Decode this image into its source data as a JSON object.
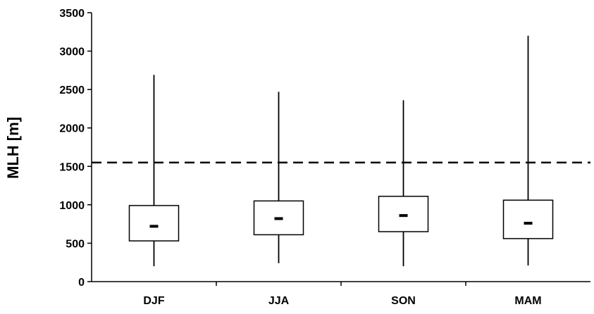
{
  "chart_data": {
    "type": "boxplot",
    "title": "",
    "xlabel": "",
    "ylabel": "MLH [m]",
    "ylim": [
      0,
      3500
    ],
    "yticks": [
      0,
      500,
      1000,
      1500,
      2000,
      2500,
      3000,
      3500
    ],
    "categories": [
      "DJF",
      "JJA",
      "SON",
      "MAM"
    ],
    "boxes": [
      {
        "category": "DJF",
        "min": 200,
        "q1": 530,
        "median": 720,
        "q3": 990,
        "max": 2690
      },
      {
        "category": "JJA",
        "min": 240,
        "q1": 610,
        "median": 820,
        "q3": 1050,
        "max": 2470
      },
      {
        "category": "SON",
        "min": 200,
        "q1": 650,
        "median": 860,
        "q3": 1110,
        "max": 2360
      },
      {
        "category": "MAM",
        "min": 210,
        "q1": 560,
        "median": 760,
        "q3": 1060,
        "max": 3200
      }
    ],
    "reference_line": {
      "y": 1550,
      "style": "dashed"
    },
    "grid": false,
    "legend": "none"
  }
}
